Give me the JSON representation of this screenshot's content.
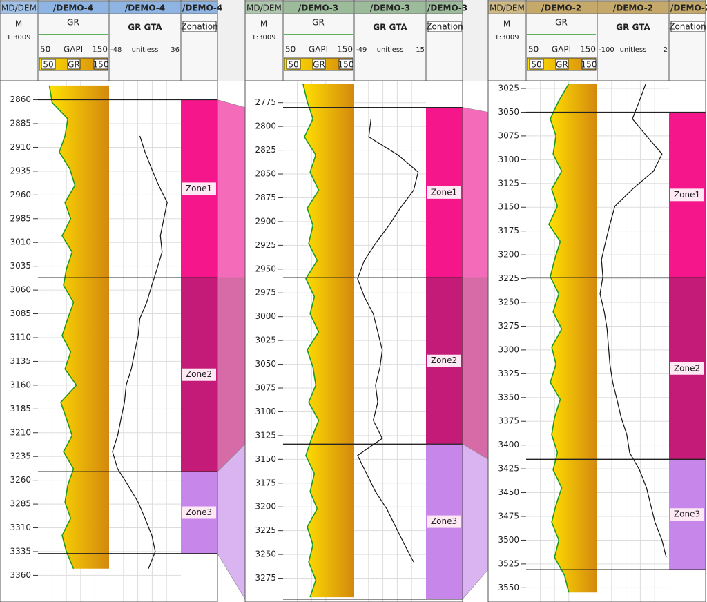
{
  "wells": [
    {
      "md_title": "MD/DEM",
      "title": "/DEMO-4",
      "header_color": "#8db4e2",
      "unit": "M",
      "scale": "1:3009",
      "gr_label": "GR",
      "gr_min": 50,
      "gr_unit": "GAPI",
      "gr_max": 150,
      "gta_label": "GR GTA",
      "gta_min": -48,
      "gta_unit": "unitless",
      "gta_max": 36,
      "zonation": "Zonation",
      "depth_lim": [
        2840,
        3388
      ],
      "depth_ticks": [
        2860,
        2885,
        2910,
        2935,
        2960,
        2985,
        3010,
        3035,
        3060,
        3085,
        3110,
        3135,
        3160,
        3185,
        3210,
        3235,
        3260,
        3285,
        3310,
        3335,
        3360
      ],
      "zones": [
        {
          "name": "Zone1",
          "top": 2860,
          "bottom": 3047,
          "color": "#f5168c"
        },
        {
          "name": "Zone2",
          "top": 3047,
          "bottom": 3251,
          "color": "#c41b78"
        },
        {
          "name": "Zone3",
          "top": 3251,
          "bottom": 3337,
          "color": "#c686ea"
        }
      ],
      "samples": {
        "depth": [
          2845,
          2863,
          2880,
          2898,
          2915,
          2933,
          2950,
          2968,
          2985,
          3003,
          3020,
          3038,
          3055,
          3073,
          3090,
          3108,
          3125,
          3143,
          3160,
          3178,
          3195,
          3213,
          3230,
          3248,
          3265,
          3283,
          3300,
          3318,
          3335,
          3353
        ],
        "gr": [
          66,
          70,
          92,
          88,
          80,
          95,
          102,
          88,
          96,
          84,
          98,
          90,
          86,
          100,
          92,
          84,
          96,
          88,
          104,
          82,
          90,
          98,
          86,
          100,
          92,
          88,
          96,
          84,
          90,
          100
        ],
        "gta": [
          null,
          null,
          null,
          -12,
          -6,
          2,
          10,
          20,
          16,
          12,
          14,
          8,
          2,
          -4,
          -12,
          -14,
          -18,
          -22,
          -28,
          -30,
          -34,
          -38,
          -44,
          -38,
          -26,
          -14,
          -6,
          2,
          6,
          -2
        ]
      }
    },
    {
      "md_title": "MD/DEM",
      "title": "/DEMO-3",
      "header_color": "#9bbb9b",
      "unit": "M",
      "scale": "1:3009",
      "gr_label": "GR",
      "gr_min": 50,
      "gr_unit": "GAPI",
      "gr_max": 150,
      "gta_label": "GR GTA",
      "gta_min": -49,
      "gta_unit": "unitless",
      "gta_max": 15,
      "zonation": "Zonation",
      "depth_lim": [
        2752,
        3300
      ],
      "depth_ticks": [
        2775,
        2800,
        2825,
        2850,
        2875,
        2900,
        2925,
        2950,
        2975,
        3000,
        3025,
        3050,
        3075,
        3100,
        3125,
        3150,
        3175,
        3200,
        3225,
        3250,
        3275
      ],
      "zones": [
        {
          "name": "Zone1",
          "top": 2780,
          "bottom": 2959,
          "color": "#f5168c"
        },
        {
          "name": "Zone2",
          "top": 2959,
          "bottom": 3134,
          "color": "#c41b78"
        },
        {
          "name": "Zone3",
          "top": 3134,
          "bottom": 3297,
          "color": "#c686ea"
        }
      ],
      "samples": {
        "depth": [
          2755,
          2774,
          2792,
          2811,
          2830,
          2848,
          2867,
          2886,
          2904,
          2923,
          2941,
          2960,
          2979,
          2997,
          3016,
          3035,
          3053,
          3072,
          3090,
          3109,
          3128,
          3146,
          3165,
          3184,
          3202,
          3221,
          3240,
          3258,
          3277,
          3295
        ],
        "gr": [
          78,
          84,
          92,
          80,
          96,
          88,
          100,
          84,
          92,
          86,
          98,
          82,
          94,
          88,
          100,
          84,
          92,
          96,
          86,
          100,
          90,
          82,
          94,
          88,
          98,
          84,
          92,
          86,
          96,
          88
        ],
        "gta": [
          null,
          null,
          -34,
          -36,
          -10,
          8,
          4,
          -8,
          -18,
          -30,
          -40,
          -46,
          -40,
          -32,
          -28,
          -24,
          -26,
          -30,
          -28,
          -32,
          -24,
          -46,
          -38,
          -30,
          -20,
          -12,
          -4,
          4,
          null,
          null
        ]
      }
    },
    {
      "md_title": "MD/DEM",
      "title": "/DEMO-2",
      "header_color": "#c4a96b",
      "unit": "M",
      "scale": "1:3009",
      "gr_label": "GR",
      "gr_min": 50,
      "gr_unit": "GAPI",
      "gr_max": 150,
      "gta_label": "GR GTA",
      "gta_min": -100,
      "gta_unit": "unitless",
      "gta_max": 2,
      "zonation": "Zonation",
      "depth_lim": [
        3017,
        3565
      ],
      "depth_ticks": [
        3025,
        3050,
        3075,
        3100,
        3125,
        3150,
        3175,
        3200,
        3225,
        3250,
        3275,
        3300,
        3325,
        3350,
        3375,
        3400,
        3425,
        3450,
        3475,
        3500,
        3525,
        3550
      ],
      "zones": [
        {
          "name": "Zone1",
          "top": 3050,
          "bottom": 3224,
          "color": "#f5168c"
        },
        {
          "name": "Zone2",
          "top": 3224,
          "bottom": 3415,
          "color": "#c41b78"
        },
        {
          "name": "Zone3",
          "top": 3415,
          "bottom": 3531,
          "color": "#c686ea"
        }
      ],
      "samples": {
        "depth": [
          3020,
          3038,
          3057,
          3075,
          3094,
          3112,
          3131,
          3149,
          3168,
          3186,
          3205,
          3223,
          3241,
          3260,
          3278,
          3297,
          3315,
          3334,
          3352,
          3371,
          3389,
          3408,
          3426,
          3445,
          3463,
          3481,
          3500,
          3518,
          3537,
          3555
        ],
        "gr": [
          110,
          96,
          84,
          92,
          88,
          100,
          86,
          94,
          82,
          98,
          90,
          84,
          96,
          88,
          100,
          86,
          92,
          84,
          98,
          90,
          86,
          94,
          88,
          100,
          92,
          86,
          96,
          90,
          104,
          110
        ],
        "gta": [
          -31,
          -40,
          -50,
          -30,
          -8,
          -20,
          -50,
          -75,
          -82,
          -88,
          -94,
          -92,
          -96,
          -90,
          -86,
          -84,
          -82,
          -78,
          -72,
          -66,
          -58,
          -54,
          -40,
          -30,
          -24,
          -18,
          -8,
          -2,
          null,
          null
        ]
      }
    }
  ],
  "correlation_fills": [
    "#f36bb9",
    "#d76ba8",
    "#dab4f1"
  ]
}
